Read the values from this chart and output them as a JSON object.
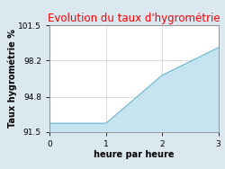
{
  "title": "Evolution du taux d'hygrométrie",
  "title_color": "#ff0000",
  "xlabel": "heure par heure",
  "ylabel": "Taux hygrométrie %",
  "background_color": "#dce8f0",
  "plot_background_color": "#ffffff",
  "fill_color": "#c5e4ef",
  "line_color": "#6ab8d0",
  "x": [
    0,
    1,
    1.05,
    2,
    3
  ],
  "y": [
    92.3,
    92.3,
    92.5,
    96.8,
    99.4
  ],
  "xlim": [
    0,
    3
  ],
  "ylim": [
    91.5,
    101.5
  ],
  "yticks": [
    91.5,
    94.8,
    98.2,
    101.5
  ],
  "xticks": [
    0,
    1,
    2,
    3
  ],
  "title_fontsize": 8.5,
  "axis_label_fontsize": 7,
  "tick_fontsize": 6.5
}
